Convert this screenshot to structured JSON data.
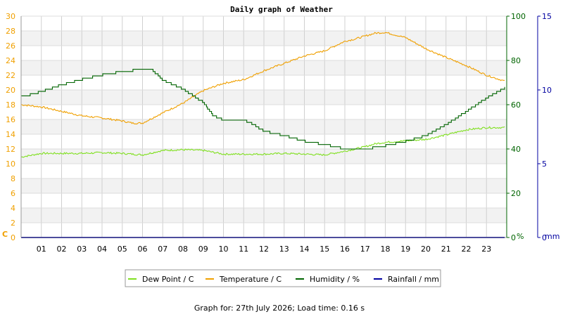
{
  "chart_data": {
    "type": "line",
    "title": "Daily graph of Weather",
    "footer": "Graph for: 27th July 2026; Load time: 0.16 s",
    "x_ticks": [
      "01",
      "02",
      "03",
      "04",
      "05",
      "06",
      "07",
      "08",
      "09",
      "10",
      "11",
      "12",
      "13",
      "14",
      "15",
      "16",
      "17",
      "18",
      "19",
      "20",
      "21",
      "22",
      "23"
    ],
    "xlim": [
      0,
      24
    ],
    "axes": {
      "temperature": {
        "unit": "C",
        "ylim": [
          0,
          30
        ],
        "ticks": [
          0,
          2,
          4,
          6,
          8,
          10,
          12,
          14,
          16,
          18,
          20,
          22,
          24,
          26,
          28,
          30
        ],
        "color": "#f0a000"
      },
      "humidity": {
        "unit": "%",
        "ylim": [
          0,
          100
        ],
        "ticks": [
          0,
          20,
          40,
          60,
          80,
          100
        ],
        "color": "#006400"
      },
      "rainfall": {
        "unit": "mm",
        "ylim": [
          0,
          15
        ],
        "ticks": [
          0,
          5,
          10,
          15
        ],
        "color": "#0000a0"
      }
    },
    "series": [
      {
        "name": "Dew Point / C",
        "axis": "temperature",
        "color": "#80e020",
        "x": [
          0,
          1,
          2,
          3,
          4,
          5,
          6,
          7,
          8,
          9,
          10,
          11,
          12,
          13,
          14,
          15,
          16,
          17,
          17.5,
          18,
          19,
          20,
          21,
          22,
          23,
          23.9
        ],
        "y": [
          10.9,
          11.4,
          11.4,
          11.4,
          11.5,
          11.4,
          11.2,
          11.8,
          11.9,
          11.8,
          11.3,
          11.3,
          11.3,
          11.4,
          11.3,
          11.2,
          11.7,
          12.3,
          12.7,
          12.9,
          13.1,
          13.3,
          13.9,
          14.6,
          14.9,
          14.9
        ]
      },
      {
        "name": "Temperature / C",
        "axis": "temperature",
        "color": "#f0a000",
        "x": [
          0,
          1,
          2,
          3,
          4,
          5,
          5.5,
          6,
          7,
          8,
          9,
          10,
          11,
          12,
          13,
          14,
          15,
          16,
          16.5,
          17,
          17.5,
          18,
          19,
          20,
          21,
          22,
          23,
          23.9
        ],
        "y": [
          18.0,
          17.7,
          17.1,
          16.5,
          16.2,
          15.8,
          15.5,
          15.5,
          16.9,
          18.2,
          19.9,
          20.9,
          21.4,
          22.6,
          23.6,
          24.6,
          25.3,
          26.6,
          26.9,
          27.3,
          27.7,
          27.8,
          27.1,
          25.6,
          24.4,
          23.3,
          22.0,
          21.2
        ]
      },
      {
        "name": "Humidity / %",
        "axis": "humidity",
        "color": "#006400",
        "x": [
          0,
          1,
          2,
          3,
          4,
          5,
          6,
          6.5,
          7,
          8,
          9,
          9.5,
          10,
          11,
          11.5,
          12,
          13,
          14,
          15,
          16,
          16.5,
          17,
          18,
          19,
          20,
          21,
          22,
          23,
          23.9
        ],
        "y": [
          63.5,
          66,
          69,
          71.5,
          73.5,
          75,
          76,
          75.5,
          71,
          67,
          61,
          55,
          53,
          53,
          51,
          48,
          46,
          43.5,
          42,
          40,
          40,
          40,
          41.5,
          43.5,
          46,
          51,
          57,
          63,
          67.5
        ]
      },
      {
        "name": "Rainfall / mm",
        "axis": "rainfall",
        "color": "#0000a0",
        "x": [
          0,
          23.9
        ],
        "y": [
          0,
          0
        ]
      }
    ],
    "legend_position": "bottom-center",
    "grid": true
  }
}
